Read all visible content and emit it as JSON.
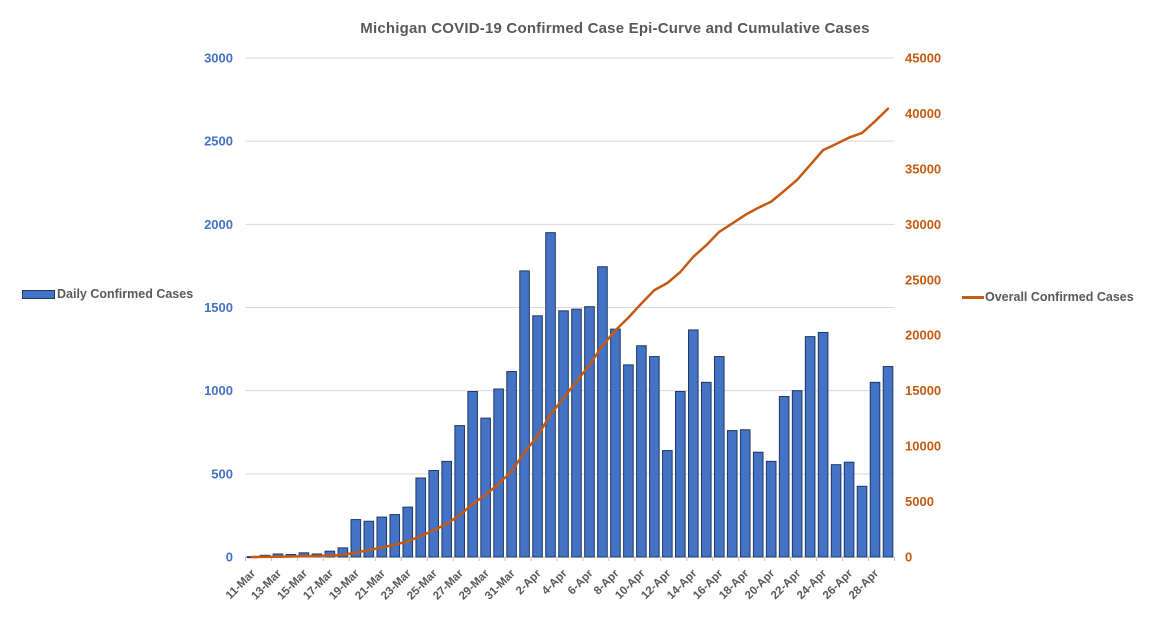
{
  "title": "Michigan COVID-19 Confirmed Case Epi-Curve and Cumulative Cases",
  "legend_left": {
    "label": "Daily Confirmed Cases"
  },
  "legend_right": {
    "label": "Overall Confirmed Cases"
  },
  "colors": {
    "bar_fill": "#4472C4",
    "bar_border": "#1F3864",
    "line": "#C55A11",
    "left_axis_text": "#4472C4",
    "right_axis_text": "#C55A11",
    "x_axis_text": "#595959",
    "title_text": "#595959",
    "gridline": "#D9D9D9",
    "axis_line": "#BFBFBF"
  },
  "chart_data": {
    "type": "bar",
    "subtype": "combo-bar-line-dual-axis",
    "title": "Michigan COVID-19 Confirmed Case Epi-Curve and Cumulative Cases",
    "xlabel": "",
    "ylabel_left": "",
    "ylabel_right": "",
    "grid": true,
    "legend_position": "outside-left-and-right-middle",
    "categories": [
      "11-Mar",
      "12-Mar",
      "13-Mar",
      "14-Mar",
      "15-Mar",
      "16-Mar",
      "17-Mar",
      "18-Mar",
      "19-Mar",
      "20-Mar",
      "21-Mar",
      "22-Mar",
      "23-Mar",
      "24-Mar",
      "25-Mar",
      "26-Mar",
      "27-Mar",
      "28-Mar",
      "29-Mar",
      "30-Mar",
      "31-Mar",
      "1-Apr",
      "2-Apr",
      "3-Apr",
      "4-Apr",
      "5-Apr",
      "6-Apr",
      "7-Apr",
      "8-Apr",
      "9-Apr",
      "10-Apr",
      "11-Apr",
      "12-Apr",
      "13-Apr",
      "14-Apr",
      "15-Apr",
      "16-Apr",
      "17-Apr",
      "18-Apr",
      "19-Apr",
      "20-Apr",
      "21-Apr",
      "22-Apr",
      "23-Apr",
      "24-Apr",
      "25-Apr",
      "26-Apr",
      "27-Apr",
      "28-Apr",
      "29-Apr"
    ],
    "x_label_every": 2,
    "series": [
      {
        "name": "Daily Confirmed Cases",
        "type": "bar",
        "axis": "left",
        "values": [
          2,
          10,
          18,
          15,
          25,
          18,
          35,
          55,
          225,
          215,
          240,
          255,
          300,
          475,
          520,
          575,
          790,
          995,
          835,
          1010,
          1115,
          1720,
          1450,
          1950,
          1480,
          1490,
          1505,
          1745,
          1370,
          1155,
          1270,
          1205,
          640,
          995,
          1365,
          1050,
          1205,
          760,
          765,
          630,
          575,
          965,
          1000,
          1325,
          1350,
          555,
          570,
          425,
          1050,
          1145
        ]
      },
      {
        "name": "Overall Confirmed Cases",
        "type": "line",
        "axis": "right",
        "values": [
          2,
          12,
          30,
          45,
          70,
          88,
          123,
          178,
          403,
          618,
          858,
          1113,
          1413,
          1888,
          2408,
          2983,
          3773,
          4768,
          5603,
          6613,
          7728,
          9448,
          10898,
          12848,
          14328,
          15818,
          17323,
          19068,
          20438,
          21593,
          22863,
          24068,
          24708,
          25703,
          27068,
          28118,
          29323,
          30083,
          30848,
          31478,
          32053,
          33018,
          34018,
          35343,
          36693,
          37248,
          37818,
          38243,
          39293,
          40438
        ]
      }
    ],
    "left_axis": {
      "min": 0,
      "max": 3000,
      "step": 500,
      "ticks": [
        0,
        500,
        1000,
        1500,
        2000,
        2500,
        3000
      ]
    },
    "right_axis": {
      "min": 0,
      "max": 45000,
      "step": 5000,
      "ticks": [
        0,
        5000,
        10000,
        15000,
        20000,
        25000,
        30000,
        35000,
        40000,
        45000
      ]
    }
  }
}
